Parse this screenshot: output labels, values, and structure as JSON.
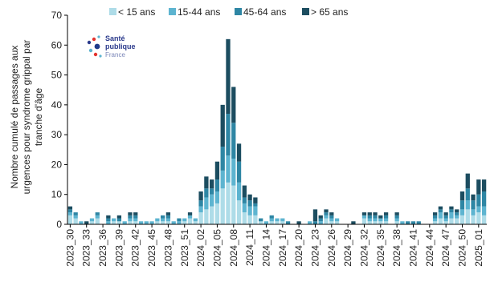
{
  "chart_data": {
    "type": "bar",
    "stacked": true,
    "ylabel": "Nombre cumulé de passages aux urgences pour syndrome grippal par tranche d'âge",
    "ylabel_lines": [
      "Nombre cumulé de passages aux",
      "urgences pour syndrome grippal par",
      "tranche d'âge"
    ],
    "ylim": [
      0,
      70
    ],
    "yticks": [
      0,
      10,
      20,
      30,
      40,
      50,
      60,
      70
    ],
    "legend_position": "top",
    "grid": false,
    "categories": [
      "2023_30",
      "2023_31",
      "2023_32",
      "2023_33",
      "2023_34",
      "2023_35",
      "2023_36",
      "2023_37",
      "2023_38",
      "2023_39",
      "2023_40",
      "2023_41",
      "2023_42",
      "2023_43",
      "2023_44",
      "2023_45",
      "2023_46",
      "2023_47",
      "2023_48",
      "2023_49",
      "2023_50",
      "2023_51",
      "2023_52",
      "2024_01",
      "2024_02",
      "2024_03",
      "2024_04",
      "2024_05",
      "2024_06",
      "2024_07",
      "2024_08",
      "2024_09",
      "2024_10",
      "2024_11",
      "2024_12",
      "2024_13",
      "2024_14",
      "2024_15",
      "2024_16",
      "2024_17",
      "2024_18",
      "2024_19",
      "2024_20",
      "2024_21",
      "2024_22",
      "2024_23",
      "2024_24",
      "2024_25",
      "2024_26",
      "2024_27",
      "2024_28",
      "2024_29",
      "2024_30",
      "2024_31",
      "2024_32",
      "2024_33",
      "2024_34",
      "2024_35",
      "2024_36",
      "2024_37",
      "2024_38",
      "2024_39",
      "2024_40",
      "2024_41",
      "2024_42",
      "2024_43",
      "2024_44",
      "2024_45",
      "2024_46",
      "2024_47",
      "2024_48",
      "2024_49",
      "2024_50",
      "2024_51",
      "2024_52",
      "2025_01",
      "2025_02"
    ],
    "tick_labels": [
      "2023_30",
      "2023_33",
      "2023_36",
      "2023_39",
      "2023_42",
      "2023_45",
      "2023_48",
      "2023_51",
      "2024_02",
      "2024_05",
      "2024_08",
      "2024_11",
      "2024_14",
      "2024_17",
      "2024_20",
      "2024_23",
      "2024_26",
      "2024_29",
      "2024_32",
      "2024_35",
      "2024_38",
      "2024_41",
      "2024_44",
      "2024_47",
      "2024_50",
      "2025_01"
    ],
    "series": [
      {
        "name": "< 15 ans",
        "color": "#aedce8",
        "values": [
          3,
          2,
          0,
          0,
          1,
          2,
          0,
          0,
          1,
          1,
          0,
          1,
          1,
          0,
          0,
          0,
          1,
          1,
          1,
          0,
          0,
          1,
          2,
          1,
          4,
          5,
          6,
          7,
          12,
          14,
          13,
          8,
          4,
          3,
          3,
          1,
          0,
          1,
          1,
          1,
          0,
          0,
          0,
          0,
          0,
          0,
          0,
          2,
          1,
          1,
          0,
          0,
          0,
          0,
          2,
          1,
          1,
          1,
          1,
          0,
          1,
          0,
          0,
          0,
          0,
          0,
          0,
          1,
          2,
          1,
          2,
          2,
          3,
          5,
          3,
          4,
          3
        ]
      },
      {
        "name": "15-44 ans",
        "color": "#5db4d0",
        "values": [
          1,
          1,
          1,
          0,
          1,
          1,
          0,
          1,
          1,
          0,
          1,
          1,
          1,
          1,
          1,
          1,
          1,
          1,
          1,
          1,
          1,
          1,
          1,
          1,
          2,
          4,
          4,
          4,
          6,
          9,
          9,
          6,
          3,
          3,
          3,
          0,
          1,
          1,
          1,
          1,
          0,
          0,
          0,
          0,
          1,
          0,
          1,
          1,
          1,
          1,
          0,
          0,
          0,
          0,
          1,
          1,
          1,
          1,
          1,
          0,
          1,
          1,
          0,
          0,
          0,
          0,
          0,
          1,
          2,
          1,
          2,
          1,
          2,
          3,
          2,
          2,
          3
        ]
      },
      {
        "name": "45-64 ans",
        "color": "#2e86a4",
        "values": [
          1,
          1,
          0,
          0,
          0,
          1,
          0,
          1,
          0,
          1,
          0,
          1,
          1,
          0,
          0,
          0,
          0,
          1,
          1,
          0,
          1,
          0,
          0,
          0,
          2,
          3,
          2,
          4,
          8,
          14,
          12,
          7,
          2,
          2,
          1,
          1,
          0,
          1,
          0,
          0,
          1,
          0,
          0,
          0,
          0,
          1,
          1,
          1,
          1,
          0,
          0,
          0,
          0,
          0,
          0,
          1,
          1,
          0,
          1,
          0,
          1,
          0,
          1,
          1,
          1,
          0,
          0,
          1,
          1,
          1,
          1,
          1,
          3,
          4,
          3,
          4,
          5
        ]
      },
      {
        "name": "> 65 ans",
        "color": "#1c4d60",
        "values": [
          1,
          0,
          0,
          1,
          0,
          0,
          0,
          1,
          0,
          1,
          0,
          1,
          1,
          0,
          0,
          0,
          0,
          0,
          1,
          0,
          0,
          0,
          1,
          0,
          3,
          4,
          3,
          6,
          14,
          25,
          12,
          6,
          4,
          2,
          2,
          0,
          0,
          0,
          0,
          0,
          0,
          0,
          1,
          0,
          0,
          4,
          1,
          1,
          1,
          0,
          0,
          0,
          1,
          0,
          1,
          1,
          1,
          1,
          1,
          0,
          1,
          0,
          0,
          0,
          0,
          0,
          0,
          1,
          1,
          1,
          1,
          1,
          3,
          5,
          2,
          5,
          4
        ]
      }
    ]
  },
  "logo": {
    "line1": "Santé",
    "line2": "publique",
    "line3": "France"
  }
}
